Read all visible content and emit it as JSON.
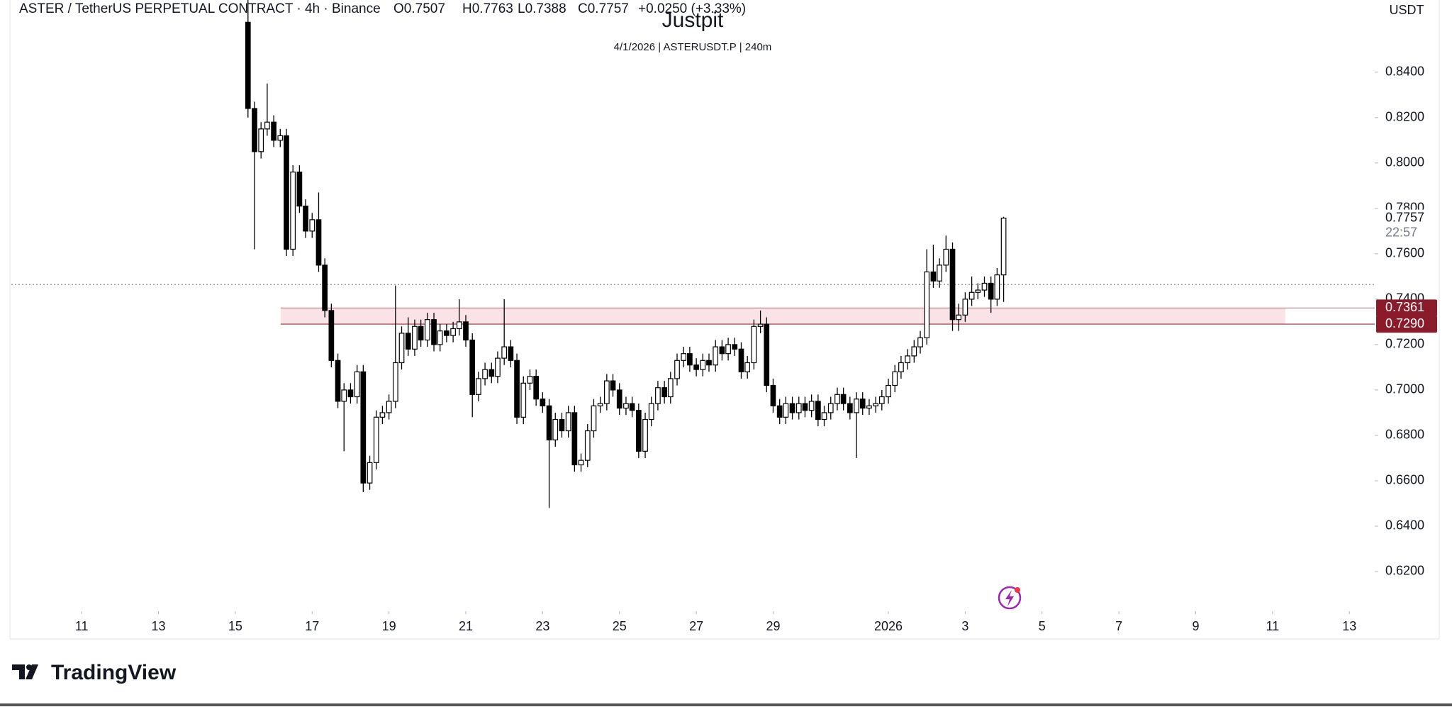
{
  "header": {
    "symbol": "ASTER / TetherUS PERPETUAL CONTRACT · 4h · Binance",
    "ohlc": [
      "O0.7507",
      "H0.7763",
      "L0.7388",
      "C0.7757",
      "+0.0250 (+3.33%)"
    ],
    "currency": "USDT"
  },
  "chart_data": {
    "type": "candlestick",
    "title": "Justpit",
    "subtitle": "4/1/2026 | ASTERUSDT.P | 240m",
    "x": [
      15.33,
      15.5,
      15.67,
      15.83,
      16,
      16.17,
      16.33,
      16.5,
      16.67,
      16.83,
      17,
      17.17,
      17.33,
      17.5,
      17.67,
      17.83,
      18,
      18.17,
      18.33,
      18.5,
      18.67,
      18.83,
      19,
      19.17,
      19.33,
      19.5,
      19.67,
      19.83,
      20,
      20.17,
      20.33,
      20.5,
      20.67,
      20.83,
      21,
      21.17,
      21.33,
      21.5,
      21.67,
      21.83,
      22,
      22.17,
      22.33,
      22.5,
      22.67,
      22.83,
      23,
      23.17,
      23.33,
      23.5,
      23.67,
      23.83,
      24,
      24.17,
      24.33,
      24.5,
      24.67,
      24.83,
      25,
      25.17,
      25.33,
      25.5,
      25.67,
      25.83,
      26,
      26.17,
      26.33,
      26.5,
      26.67,
      26.83,
      27,
      27.17,
      27.33,
      27.5,
      27.67,
      27.83,
      28,
      28.17,
      28.33,
      28.5,
      28.67,
      28.83,
      29,
      29.17,
      29.33,
      29.5,
      29.67,
      29.83,
      30,
      30.17,
      30.33,
      30.5,
      30.67,
      30.83,
      31,
      31.17,
      31.33,
      31.5,
      31.67,
      31.83,
      32,
      32.17,
      32.33,
      32.5,
      32.67,
      32.83,
      33,
      33.17,
      33.33,
      33.5,
      33.67,
      33.83,
      34,
      34.17,
      34.33,
      34.5,
      34.67,
      34.83,
      35
    ],
    "open": [
      0.862,
      0.824,
      0.805,
      0.815,
      0.818,
      0.81,
      0.812,
      0.762,
      0.796,
      0.781,
      0.77,
      0.775,
      0.755,
      0.735,
      0.713,
      0.695,
      0.7,
      0.697,
      0.708,
      0.659,
      0.668,
      0.688,
      0.69,
      0.695,
      0.712,
      0.725,
      0.718,
      0.728,
      0.722,
      0.731,
      0.72,
      0.726,
      0.724,
      0.727,
      0.73,
      0.722,
      0.698,
      0.705,
      0.709,
      0.706,
      0.714,
      0.719,
      0.713,
      0.688,
      0.703,
      0.706,
      0.696,
      0.693,
      0.678,
      0.687,
      0.682,
      0.69,
      0.667,
      0.669,
      0.682,
      0.693,
      0.694,
      0.704,
      0.7,
      0.692,
      0.694,
      0.691,
      0.673,
      0.687,
      0.694,
      0.701,
      0.697,
      0.705,
      0.713,
      0.716,
      0.711,
      0.709,
      0.713,
      0.711,
      0.719,
      0.716,
      0.72,
      0.718,
      0.708,
      0.712,
      0.728,
      0.729,
      0.702,
      0.693,
      0.688,
      0.694,
      0.69,
      0.694,
      0.691,
      0.695,
      0.687,
      0.69,
      0.694,
      0.698,
      0.694,
      0.69,
      0.696,
      0.692,
      0.693,
      0.694,
      0.697,
      0.702,
      0.708,
      0.712,
      0.715,
      0.719,
      0.723,
      0.752,
      0.748,
      0.755,
      0.762,
      0.731,
      0.733,
      0.74,
      0.743,
      0.744,
      0.747,
      0.74,
      0.7507
    ],
    "high": [
      0.872,
      0.827,
      0.818,
      0.835,
      0.821,
      0.815,
      0.815,
      0.799,
      0.799,
      0.784,
      0.778,
      0.787,
      0.758,
      0.738,
      0.716,
      0.703,
      0.703,
      0.711,
      0.711,
      0.671,
      0.691,
      0.693,
      0.698,
      0.746,
      0.728,
      0.732,
      0.731,
      0.731,
      0.734,
      0.734,
      0.729,
      0.729,
      0.73,
      0.74,
      0.733,
      0.725,
      0.708,
      0.712,
      0.712,
      0.717,
      0.74,
      0.722,
      0.716,
      0.706,
      0.709,
      0.709,
      0.699,
      0.696,
      0.69,
      0.69,
      0.693,
      0.693,
      0.672,
      0.685,
      0.696,
      0.697,
      0.707,
      0.707,
      0.703,
      0.697,
      0.697,
      0.694,
      0.69,
      0.697,
      0.704,
      0.704,
      0.708,
      0.716,
      0.719,
      0.719,
      0.714,
      0.716,
      0.716,
      0.722,
      0.722,
      0.723,
      0.723,
      0.721,
      0.715,
      0.731,
      0.735,
      0.732,
      0.705,
      0.696,
      0.697,
      0.697,
      0.697,
      0.697,
      0.698,
      0.698,
      0.693,
      0.697,
      0.701,
      0.701,
      0.697,
      0.699,
      0.699,
      0.696,
      0.697,
      0.7,
      0.705,
      0.711,
      0.715,
      0.718,
      0.722,
      0.726,
      0.762,
      0.764,
      0.758,
      0.768,
      0.765,
      0.738,
      0.743,
      0.75,
      0.747,
      0.75,
      0.75,
      0.7537,
      0.7763
    ],
    "low": [
      0.82,
      0.762,
      0.802,
      0.812,
      0.807,
      0.807,
      0.759,
      0.759,
      0.778,
      0.767,
      0.767,
      0.752,
      0.732,
      0.71,
      0.692,
      0.673,
      0.694,
      0.694,
      0.655,
      0.656,
      0.665,
      0.685,
      0.687,
      0.692,
      0.709,
      0.715,
      0.715,
      0.719,
      0.719,
      0.717,
      0.717,
      0.721,
      0.721,
      0.724,
      0.719,
      0.688,
      0.695,
      0.702,
      0.703,
      0.703,
      0.711,
      0.71,
      0.685,
      0.685,
      0.7,
      0.693,
      0.69,
      0.648,
      0.675,
      0.679,
      0.679,
      0.664,
      0.664,
      0.666,
      0.679,
      0.69,
      0.691,
      0.697,
      0.689,
      0.689,
      0.688,
      0.67,
      0.67,
      0.684,
      0.691,
      0.694,
      0.694,
      0.702,
      0.71,
      0.708,
      0.706,
      0.706,
      0.708,
      0.708,
      0.713,
      0.713,
      0.715,
      0.705,
      0.705,
      0.709,
      0.725,
      0.699,
      0.69,
      0.685,
      0.685,
      0.687,
      0.687,
      0.688,
      0.688,
      0.684,
      0.684,
      0.687,
      0.691,
      0.691,
      0.687,
      0.67,
      0.689,
      0.689,
      0.69,
      0.691,
      0.694,
      0.699,
      0.705,
      0.709,
      0.712,
      0.716,
      0.72,
      0.745,
      0.745,
      0.752,
      0.726,
      0.726,
      0.73,
      0.737,
      0.74,
      0.741,
      0.734,
      0.737,
      0.7388
    ],
    "close": [
      0.824,
      0.805,
      0.815,
      0.818,
      0.81,
      0.812,
      0.762,
      0.796,
      0.781,
      0.77,
      0.775,
      0.755,
      0.735,
      0.713,
      0.695,
      0.7,
      0.697,
      0.708,
      0.659,
      0.668,
      0.688,
      0.69,
      0.695,
      0.712,
      0.725,
      0.718,
      0.728,
      0.722,
      0.731,
      0.72,
      0.726,
      0.724,
      0.727,
      0.73,
      0.722,
      0.698,
      0.705,
      0.709,
      0.706,
      0.714,
      0.719,
      0.713,
      0.688,
      0.703,
      0.706,
      0.696,
      0.693,
      0.678,
      0.687,
      0.682,
      0.69,
      0.667,
      0.669,
      0.682,
      0.693,
      0.694,
      0.704,
      0.7,
      0.692,
      0.694,
      0.691,
      0.673,
      0.687,
      0.694,
      0.701,
      0.697,
      0.705,
      0.713,
      0.716,
      0.711,
      0.709,
      0.713,
      0.711,
      0.719,
      0.716,
      0.72,
      0.718,
      0.708,
      0.712,
      0.728,
      0.729,
      0.702,
      0.693,
      0.688,
      0.694,
      0.69,
      0.694,
      0.691,
      0.695,
      0.687,
      0.69,
      0.694,
      0.698,
      0.694,
      0.69,
      0.696,
      0.692,
      0.693,
      0.694,
      0.697,
      0.702,
      0.708,
      0.712,
      0.715,
      0.719,
      0.723,
      0.752,
      0.748,
      0.755,
      0.762,
      0.731,
      0.733,
      0.74,
      0.743,
      0.744,
      0.747,
      0.74,
      0.7507,
      0.7757
    ],
    "colors": {
      "up": "#ffffff",
      "down": "#000000",
      "wick": "#000000"
    },
    "xlim": [
      9.17,
      44.66
    ],
    "xticks": [
      11,
      13,
      15,
      17,
      19,
      21,
      23,
      25,
      27,
      29,
      {
        "value": 32,
        "label": "2026"
      },
      {
        "value": 34,
        "label": "3"
      },
      {
        "value": 36,
        "label": "5"
      },
      {
        "value": 38,
        "label": "7"
      },
      {
        "value": 40,
        "label": "9"
      },
      {
        "value": 42,
        "label": "11"
      },
      {
        "value": 44,
        "label": "13"
      }
    ],
    "ylim": [
      0.6025,
      0.8718
    ],
    "yticks": [
      {
        "value": 0.62,
        "label": "0.6200"
      },
      {
        "value": 0.64,
        "label": "0.6400"
      },
      {
        "value": 0.66,
        "label": "0.6600"
      },
      {
        "value": 0.68,
        "label": "0.6800"
      },
      {
        "value": 0.7,
        "label": "0.7000"
      },
      {
        "value": 0.72,
        "label": "0.7200"
      },
      {
        "value": 0.74,
        "label": "0.7400"
      },
      {
        "value": 0.76,
        "label": "0.7600"
      },
      {
        "value": 0.78,
        "label": "0.7800"
      },
      {
        "value": 0.8,
        "label": "0.8000"
      },
      {
        "value": 0.82,
        "label": "0.8200"
      },
      {
        "value": 0.84,
        "label": "0.8400"
      }
    ],
    "last_price": 0.7757,
    "countdown": "22:57",
    "zone": {
      "values": [
        0.7361,
        0.729
      ],
      "value_labels": [
        "0.7361",
        "0.7290"
      ],
      "x": [
        16.18,
        42.33
      ],
      "color": "#8b1a2b",
      "fill": "#f9e3e6"
    },
    "dotted_line": 0.7465
  },
  "footer": {
    "brand": "TradingView"
  }
}
